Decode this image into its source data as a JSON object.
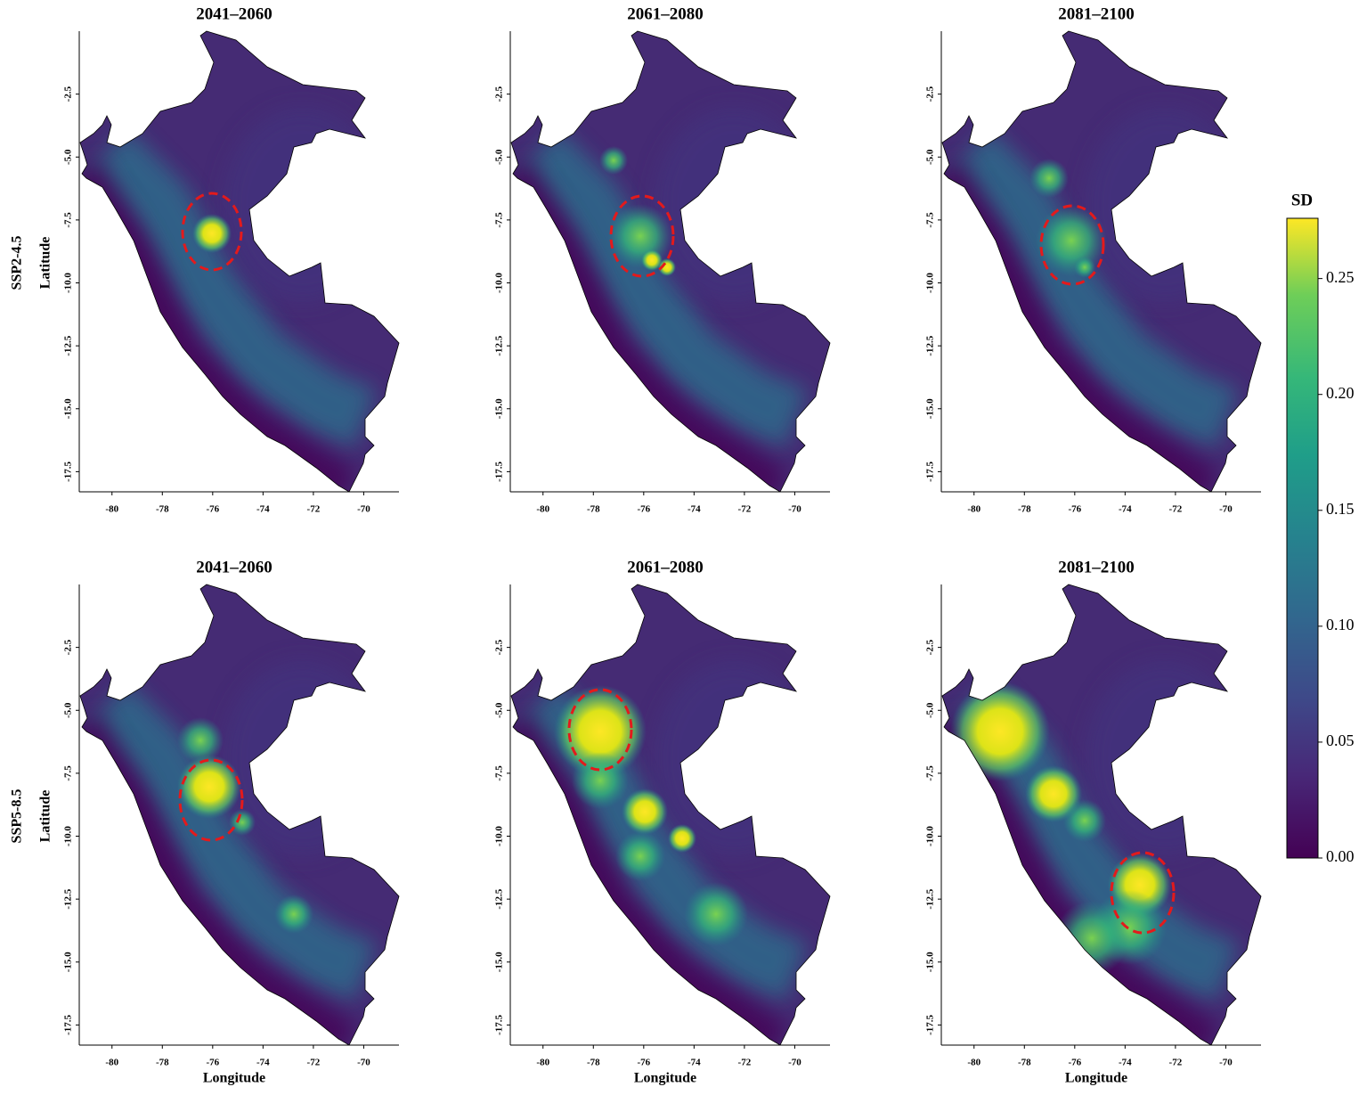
{
  "rows": [
    {
      "label": "SSP2-4.5",
      "panels": [
        "2041–2060",
        "2061–2080",
        "2081–2100"
      ]
    },
    {
      "label": "SSP5-8.5",
      "panels": [
        "2041–2060",
        "2061–2080",
        "2081–2100"
      ]
    }
  ],
  "xlabel": "Longitude",
  "ylabel": "Latitude",
  "xlim": [
    -81.3,
    -68.6
  ],
  "ylim": [
    -18.3,
    0.0
  ],
  "xticks": [
    -80,
    -78,
    -76,
    -74,
    -72,
    -70
  ],
  "yticks": [
    -2.5,
    {
      "value": -5,
      "label": "-5.0"
    },
    -7.5,
    {
      "value": -10,
      "label": "-10.0"
    },
    -12.5,
    {
      "value": -15,
      "label": "-15.0"
    },
    -17.5
  ],
  "colorbar": {
    "title": "SD",
    "lim": [
      0,
      0.276
    ],
    "ticks": [
      {
        "value": 0,
        "label": "0.00"
      },
      0.05,
      {
        "value": 0.1,
        "label": "0.10"
      },
      0.15,
      {
        "value": 0.2,
        "label": "0.20"
      },
      0.25
    ]
  }
}
